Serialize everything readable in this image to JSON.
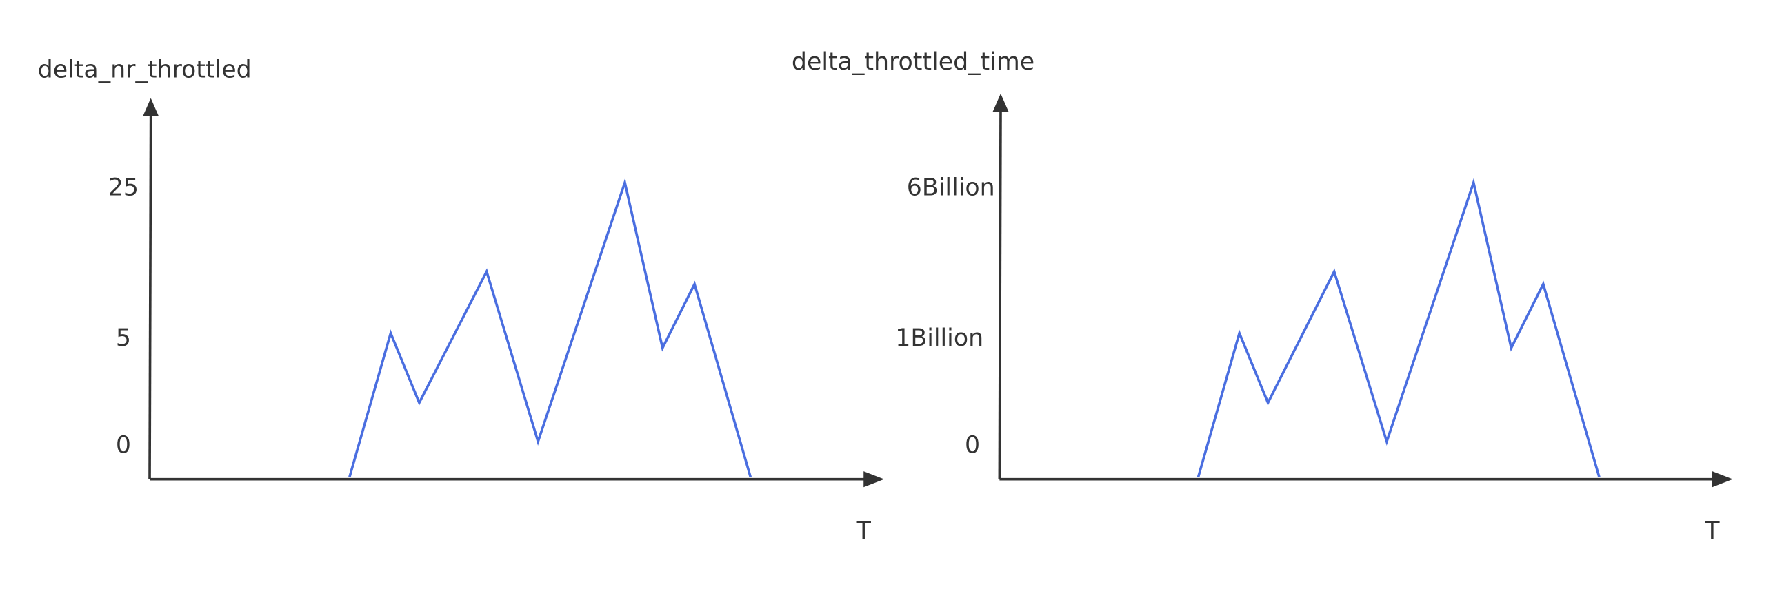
{
  "charts": [
    {
      "y_label": "delta_nr_throttled",
      "y_ticks": [
        "25",
        "5",
        "0"
      ],
      "x_label": "T"
    },
    {
      "y_label": "delta_throttled_time",
      "y_ticks": [
        "6Billion",
        "1Billion",
        "0"
      ],
      "x_label": "T"
    }
  ]
}
